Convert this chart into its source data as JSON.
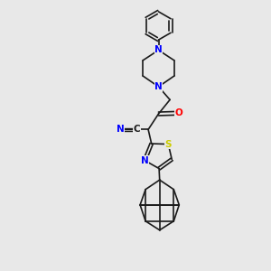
{
  "bg_color": "#e8e8e8",
  "bond_color": "#1a1a1a",
  "bond_width": 1.2,
  "atom_colors": {
    "N": "#0000ff",
    "O": "#ff0000",
    "S": "#cccc00",
    "C": "#1a1a1a"
  },
  "xlim": [
    0,
    10
  ],
  "ylim": [
    0,
    10
  ]
}
